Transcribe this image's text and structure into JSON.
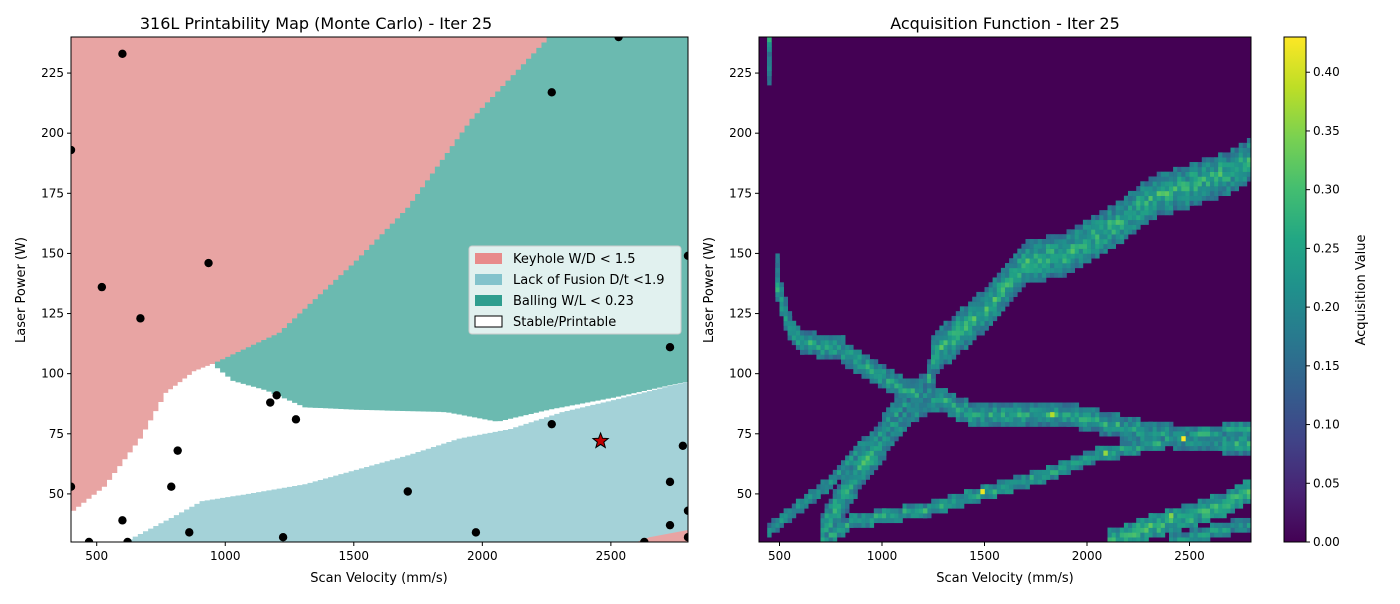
{
  "chart_data": [
    {
      "type": "heatmap",
      "title": "316L Printability Map (Monte Carlo) - Iter 25",
      "xlabel": "Scan Velocity (mm/s)",
      "ylabel": "Laser Power (W)",
      "xlim": [
        400,
        2800
      ],
      "ylim": [
        30,
        240
      ],
      "xticks": [
        500,
        1000,
        1500,
        2000,
        2500
      ],
      "yticks": [
        50,
        75,
        100,
        125,
        150,
        175,
        200,
        225
      ],
      "grid": false,
      "legend_position": "center-right",
      "legend": [
        {
          "label": "Keyhole W/D < 1.5",
          "color": "#e88b8b"
        },
        {
          "label": "Lack of Fusion D/t <1.9",
          "color": "#83c3cc"
        },
        {
          "label": "Balling W/L < 0.23",
          "color": "#2f9e8f"
        },
        {
          "label": "Stable/Printable",
          "color": "#ffffff"
        }
      ],
      "region_colors": {
        "keyhole": "#e8a4a3",
        "lack_of_fusion": "#a4d2d8",
        "balling": "#6bbab0",
        "stable": "#ffffff"
      },
      "boundaries": {
        "keyhole_upper_edge": [
          [
            400,
            43
          ],
          [
            520,
            53
          ],
          [
            660,
            73
          ],
          [
            760,
            92
          ],
          [
            870,
            101
          ],
          [
            940,
            104
          ],
          [
            1200,
            117
          ],
          [
            1500,
            147
          ],
          [
            1700,
            169
          ],
          [
            1950,
            206
          ],
          [
            2250,
            240
          ]
        ],
        "balling_lower_edge": [
          [
            940,
            104
          ],
          [
            1020,
            97
          ],
          [
            1150,
            93
          ],
          [
            1300,
            86
          ],
          [
            1500,
            85
          ],
          [
            1850,
            84
          ],
          [
            2050,
            80
          ],
          [
            2250,
            85
          ],
          [
            2500,
            90
          ],
          [
            2800,
            97
          ]
        ],
        "lack_of_fusion_upper_edge": [
          [
            600,
            30
          ],
          [
            780,
            40
          ],
          [
            900,
            47
          ],
          [
            1080,
            50
          ],
          [
            1300,
            54
          ],
          [
            1500,
            60
          ],
          [
            1700,
            66
          ],
          [
            1900,
            73
          ],
          [
            2100,
            77
          ],
          [
            2300,
            84
          ],
          [
            2500,
            89
          ],
          [
            2800,
            97
          ]
        ],
        "keyhole_corner_bottom_right": [
          [
            2600,
            30
          ],
          [
            2650,
            32
          ],
          [
            2800,
            35
          ],
          [
            2800,
            30
          ]
        ]
      },
      "points": [
        {
          "x": 400,
          "y": 193
        },
        {
          "x": 400,
          "y": 53
        },
        {
          "x": 470,
          "y": 30
        },
        {
          "x": 520,
          "y": 136
        },
        {
          "x": 600,
          "y": 233
        },
        {
          "x": 600,
          "y": 39
        },
        {
          "x": 620,
          "y": 30
        },
        {
          "x": 670,
          "y": 123
        },
        {
          "x": 790,
          "y": 53
        },
        {
          "x": 815,
          "y": 68
        },
        {
          "x": 860,
          "y": 34
        },
        {
          "x": 935,
          "y": 146
        },
        {
          "x": 1175,
          "y": 88
        },
        {
          "x": 1200,
          "y": 91
        },
        {
          "x": 1225,
          "y": 32
        },
        {
          "x": 1275,
          "y": 81
        },
        {
          "x": 1710,
          "y": 51
        },
        {
          "x": 1975,
          "y": 34
        },
        {
          "x": 2270,
          "y": 217
        },
        {
          "x": 2270,
          "y": 79
        },
        {
          "x": 2530,
          "y": 240
        },
        {
          "x": 2630,
          "y": 30
        },
        {
          "x": 2730,
          "y": 111
        },
        {
          "x": 2730,
          "y": 55
        },
        {
          "x": 2730,
          "y": 37
        },
        {
          "x": 2780,
          "y": 70
        },
        {
          "x": 2800,
          "y": 149
        },
        {
          "x": 2800,
          "y": 43
        },
        {
          "x": 2800,
          "y": 32
        }
      ],
      "best_point": {
        "x": 2460,
        "y": 72,
        "marker": "star",
        "color": "#c00000"
      }
    },
    {
      "type": "heatmap",
      "title": "Acquisition Function - Iter 25",
      "xlabel": "Scan Velocity (mm/s)",
      "ylabel": "Laser Power (W)",
      "xlim": [
        400,
        2800
      ],
      "ylim": [
        30,
        240
      ],
      "xticks": [
        500,
        1000,
        1500,
        2000,
        2500
      ],
      "yticks": [
        50,
        75,
        100,
        125,
        150,
        175,
        200,
        225
      ],
      "colorbar_label": "Acquisition Value",
      "colorbar_range": [
        0,
        0.43
      ],
      "colorbar_ticks": [
        0.0,
        0.05,
        0.1,
        0.15,
        0.2,
        0.25,
        0.3,
        0.35,
        0.4
      ],
      "colormap": "viridis",
      "background_value": 0,
      "ridges": [
        {
          "points": [
            [
              700,
              30
            ],
            [
              900,
              62
            ],
            [
              1100,
              85
            ],
            [
              1230,
              92
            ],
            [
              1260,
              108
            ],
            [
              1350,
              115
            ],
            [
              1550,
              130
            ],
            [
              1700,
              146
            ],
            [
              1900,
              150
            ],
            [
              2100,
              160
            ],
            [
              2300,
              173
            ],
            [
              2500,
              178
            ],
            [
              2650,
              182
            ],
            [
              2800,
              189
            ]
          ],
          "value": 0.27,
          "width": 8
        },
        {
          "points": [
            [
              480,
              145
            ],
            [
              510,
              130
            ],
            [
              550,
              118
            ],
            [
              600,
              113
            ],
            [
              800,
              110
            ],
            [
              950,
              101
            ],
            [
              1150,
              92
            ],
            [
              1300,
              88
            ],
            [
              1400,
              84
            ],
            [
              1900,
              83
            ],
            [
              2100,
              79
            ],
            [
              2300,
              75
            ],
            [
              2500,
              73
            ],
            [
              2650,
              72
            ],
            [
              2800,
              71
            ]
          ],
          "value": 0.25,
          "width": 4
        },
        {
          "points": [
            [
              440,
              35
            ],
            [
              700,
              52
            ],
            [
              900,
              70
            ],
            [
              1100,
              82
            ],
            [
              1230,
              92
            ]
          ],
          "value": 0.22,
          "width": 3
        },
        {
          "points": [
            [
              720,
              30
            ],
            [
              850,
              38
            ],
            [
              1000,
              41
            ],
            [
              1200,
              43
            ],
            [
              1500,
              51
            ],
            [
              1800,
              58
            ],
            [
              2050,
              66
            ],
            [
              2300,
              71
            ],
            [
              2500,
              74
            ],
            [
              2800,
              78
            ]
          ],
          "value": 0.24,
          "width": 3
        },
        {
          "points": [
            [
              2100,
              30
            ],
            [
              2300,
              36
            ],
            [
              2500,
              41
            ],
            [
              2700,
              47
            ],
            [
              2800,
              52
            ]
          ],
          "value": 0.28,
          "width": 5
        },
        {
          "points": [
            [
              2400,
              30
            ],
            [
              2600,
              34
            ],
            [
              2800,
              38
            ]
          ],
          "value": 0.22,
          "width": 3
        },
        {
          "points": [
            [
              445,
              225
            ],
            [
              445,
              238
            ]
          ],
          "value": 0.25,
          "width": 4
        }
      ],
      "hotspots": [
        [
          1480,
          50,
          0.42
        ],
        [
          2470,
          73,
          0.43
        ],
        [
          1830,
          83,
          0.38
        ],
        [
          2400,
          40,
          0.35
        ],
        [
          2080,
          67,
          0.36
        ],
        [
          1200,
          42,
          0.3
        ]
      ]
    }
  ]
}
